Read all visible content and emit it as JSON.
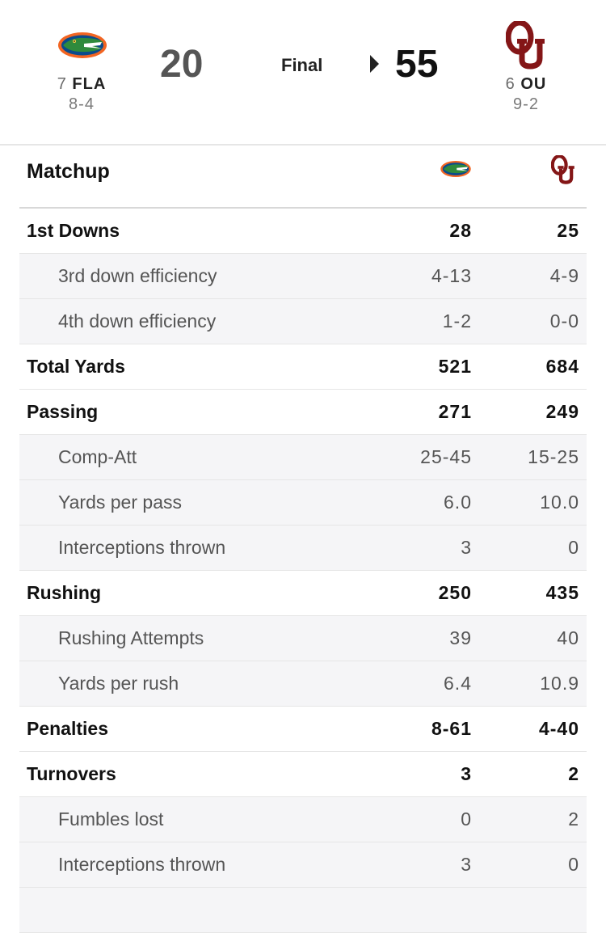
{
  "game": {
    "status": "Final",
    "away": {
      "rank": "7",
      "abbr": "FLA",
      "record": "8-4",
      "score": "20",
      "logo_icon": "florida-gator-logo",
      "color": "#f26522"
    },
    "home": {
      "rank": "6",
      "abbr": "OU",
      "record": "9-2",
      "score": "55",
      "logo_icon": "oklahoma-ou-logo",
      "color": "#841617"
    }
  },
  "matchup": {
    "title": "Matchup",
    "rows": [
      {
        "label": "1st Downs",
        "away": "28",
        "home": "25",
        "sub": false
      },
      {
        "label": "3rd down efficiency",
        "away": "4-13",
        "home": "4-9",
        "sub": true
      },
      {
        "label": "4th down efficiency",
        "away": "1-2",
        "home": "0-0",
        "sub": true
      },
      {
        "label": "Total Yards",
        "away": "521",
        "home": "684",
        "sub": false
      },
      {
        "label": "Passing",
        "away": "271",
        "home": "249",
        "sub": false
      },
      {
        "label": "Comp-Att",
        "away": "25-45",
        "home": "15-25",
        "sub": true
      },
      {
        "label": "Yards per pass",
        "away": "6.0",
        "home": "10.0",
        "sub": true
      },
      {
        "label": "Interceptions thrown",
        "away": "3",
        "home": "0",
        "sub": true
      },
      {
        "label": "Rushing",
        "away": "250",
        "home": "435",
        "sub": false
      },
      {
        "label": "Rushing Attempts",
        "away": "39",
        "home": "40",
        "sub": true
      },
      {
        "label": "Yards per rush",
        "away": "6.4",
        "home": "10.9",
        "sub": true
      },
      {
        "label": "Penalties",
        "away": "8-61",
        "home": "4-40",
        "sub": false
      },
      {
        "label": "Turnovers",
        "away": "3",
        "home": "2",
        "sub": false
      },
      {
        "label": "Fumbles lost",
        "away": "0",
        "home": "2",
        "sub": true
      },
      {
        "label": "Interceptions thrown",
        "away": "3",
        "home": "0",
        "sub": true
      },
      {
        "label": "",
        "away": "",
        "home": "",
        "sub": true
      }
    ]
  }
}
